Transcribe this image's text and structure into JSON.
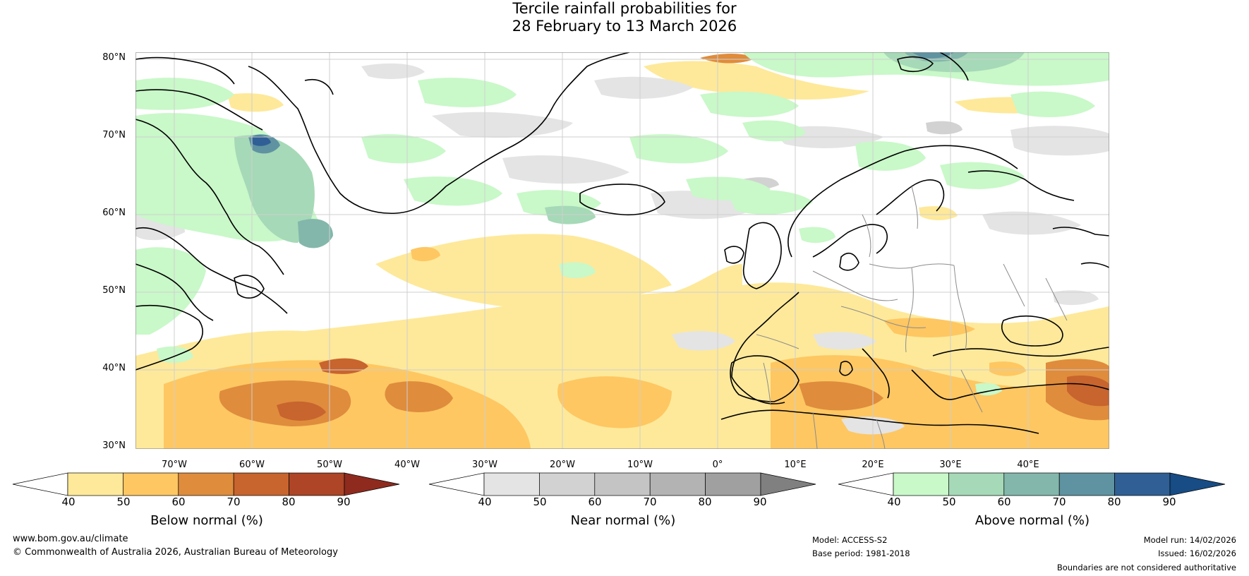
{
  "title": {
    "line1": "Tercile rainfall probabilities for",
    "line2": "28 February to 13 March 2026"
  },
  "map": {
    "lat_labels": [
      "80°N",
      "70°N",
      "60°N",
      "50°N",
      "40°N",
      "30°N"
    ],
    "lon_labels": [
      "70°W",
      "60°W",
      "50°W",
      "40°W",
      "30°W",
      "20°W",
      "10°W",
      "0°",
      "10°E",
      "20°E",
      "30°E",
      "40°E"
    ]
  },
  "colorbars": [
    {
      "title": "Below normal (%)",
      "ticks": [
        "40",
        "50",
        "60",
        "70",
        "80",
        "90"
      ],
      "colors": [
        "#ffffff",
        "#fee99a",
        "#fec762",
        "#df8c3d",
        "#c8642e",
        "#ad4526",
        "#8f2a1e"
      ]
    },
    {
      "title": "Near normal (%)",
      "ticks": [
        "40",
        "50",
        "60",
        "70",
        "80",
        "90"
      ],
      "colors": [
        "#ffffff",
        "#e4e4e4",
        "#d2d2d2",
        "#c4c4c4",
        "#b3b3b3",
        "#a0a0a0",
        "#808080"
      ]
    },
    {
      "title": "Above normal (%)",
      "ticks": [
        "40",
        "50",
        "60",
        "70",
        "80",
        "90"
      ],
      "colors": [
        "#ffffff",
        "#c9f8c9",
        "#a6d9b7",
        "#83b7ab",
        "#5f93a1",
        "#2f5f95",
        "#174c85"
      ]
    }
  ],
  "footer": {
    "website": "www.bom.gov.au/climate",
    "copyright": "© Commonwealth of Australia 2026, Australian Bureau of Meteorology",
    "model": "Model: ACCESS-S2",
    "base_period": "Base period: 1981-2018",
    "model_run": "Model run: 14/02/2026",
    "issued": "Issued: 16/02/2026",
    "disclaimer": "Boundaries are not considered authoritative"
  }
}
